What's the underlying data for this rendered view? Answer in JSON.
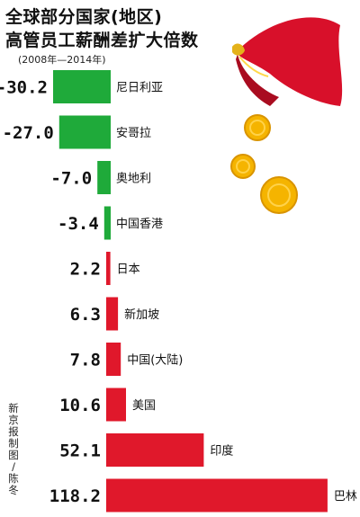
{
  "chart_data": {
    "type": "bar",
    "orientation": "horizontal",
    "title": "全球部分国家(地区)高管员工薪酬差扩大倍数",
    "title_lines": [
      "全球部分国家(地区)",
      "高管员工薪酬差扩大倍数"
    ],
    "subtitle": "(2008年—2014年)",
    "categories": [
      "尼日利亚",
      "安哥拉",
      "奥地利",
      "中国香港",
      "日本",
      "新加坡",
      "中国(大陆)",
      "美国",
      "印度",
      "巴林"
    ],
    "value_labels": [
      "-30.2",
      "-27.0",
      "-7.0",
      "-3.4",
      "2.2",
      "6.3",
      "7.8",
      "10.6",
      "52.1",
      "118.2"
    ],
    "values": [
      -30.2,
      -27.0,
      -7.0,
      -3.4,
      2.2,
      6.3,
      7.8,
      10.6,
      52.1,
      118.2
    ],
    "colors": {
      "negative": "#1faa3a",
      "positive": "#e0182b"
    },
    "grid": false,
    "legend": "none"
  },
  "credit": "新京报制图/陈冬",
  "decoration": {
    "icons": [
      "red-purse-icon",
      "gold-coin-icon"
    ],
    "colors": {
      "purse": "#d8102a",
      "coin": "#f5b400"
    }
  }
}
